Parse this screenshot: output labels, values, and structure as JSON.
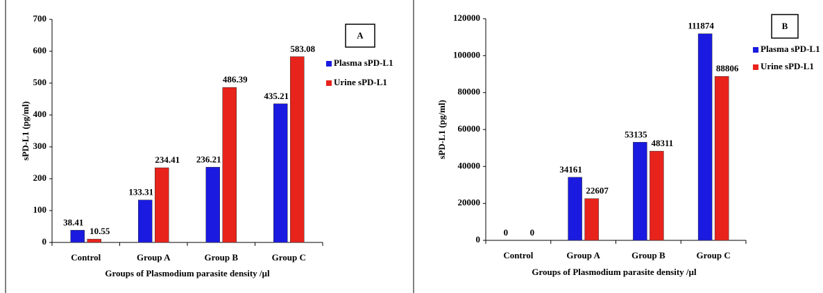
{
  "chart_data": [
    {
      "type": "bar",
      "panel_label": "A",
      "x_label": "Groups of Plasmodium parasite density /µl",
      "y_label": "sPD-L1 (pg/ml)",
      "categories": [
        "Control",
        "Group A",
        "Group B",
        "Group C"
      ],
      "series": [
        {
          "name": "Plasma sPD-L1",
          "color": "#1a1ae0",
          "values": [
            38.41,
            133.31,
            236.21,
            435.21
          ]
        },
        {
          "name": "Urine sPD-L1",
          "color": "#e8231c",
          "values": [
            10.55,
            234.41,
            486.39,
            583.08
          ]
        }
      ],
      "ylim": [
        0,
        700
      ],
      "yticks": [
        0,
        100,
        200,
        300,
        400,
        500,
        600,
        700
      ],
      "legend": "right"
    },
    {
      "type": "bar",
      "panel_label": "B",
      "x_label": "Groups of Plasmodium parasite density /µl",
      "y_label": "sPD-L1 (pg/ml)",
      "categories": [
        "Control",
        "Group A",
        "Group B",
        "Group C"
      ],
      "series": [
        {
          "name": "Plasma sPD-L1",
          "color": "#1a1ae0",
          "values": [
            0,
            34161,
            53135,
            111874
          ]
        },
        {
          "name": "Urine sPD-L1",
          "color": "#e8231c",
          "values": [
            0,
            22607,
            48311,
            88806
          ]
        }
      ],
      "ylim": [
        0,
        120000
      ],
      "yticks": [
        0,
        20000,
        40000,
        60000,
        80000,
        100000,
        120000
      ],
      "legend": "right"
    }
  ]
}
